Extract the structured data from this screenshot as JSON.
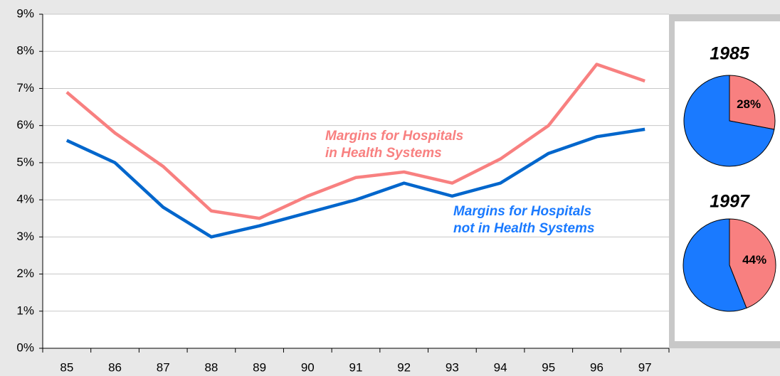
{
  "chart_data": [
    {
      "type": "line",
      "categories": [
        "85",
        "86",
        "87",
        "88",
        "89",
        "90",
        "91",
        "92",
        "93",
        "94",
        "95",
        "96",
        "97"
      ],
      "series": [
        {
          "label": [
            "Margins for Hospitals",
            "in Health Systems"
          ],
          "color": "#f88080",
          "values": [
            6.9,
            5.8,
            4.9,
            3.7,
            3.5,
            4.1,
            4.6,
            4.75,
            4.45,
            5.1,
            6.0,
            7.65,
            7.2
          ]
        },
        {
          "label": [
            "Margins for Hospitals",
            "not in Health Systems"
          ],
          "color": "#0066cc",
          "label_color": "#1a7aff",
          "values": [
            5.6,
            5.0,
            3.8,
            3.0,
            3.3,
            3.65,
            4.0,
            4.45,
            4.1,
            4.45,
            5.25,
            5.7,
            5.9
          ]
        }
      ],
      "ylim": [
        0,
        9
      ],
      "yticks": [
        {
          "value": 0,
          "label": "0%"
        },
        {
          "value": 1,
          "label": "1%"
        },
        {
          "value": 2,
          "label": "2%"
        },
        {
          "value": 3,
          "label": "3%"
        },
        {
          "value": 4,
          "label": "4%"
        },
        {
          "value": 5,
          "label": "5%"
        },
        {
          "value": 6,
          "label": "6%"
        },
        {
          "value": 7,
          "label": "7%"
        },
        {
          "value": 8,
          "label": "8%"
        },
        {
          "value": 9,
          "label": "9%"
        }
      ],
      "grid": true
    },
    {
      "type": "pie",
      "title": "1985",
      "values": [
        28,
        72
      ],
      "value_labels": [
        "28%",
        null
      ],
      "colors": [
        "#f88080",
        "#1a7aff"
      ]
    },
    {
      "type": "pie",
      "title": "1997",
      "values": [
        44,
        56
      ],
      "value_labels": [
        "44%",
        null
      ],
      "colors": [
        "#f88080",
        "#1a7aff"
      ]
    }
  ]
}
